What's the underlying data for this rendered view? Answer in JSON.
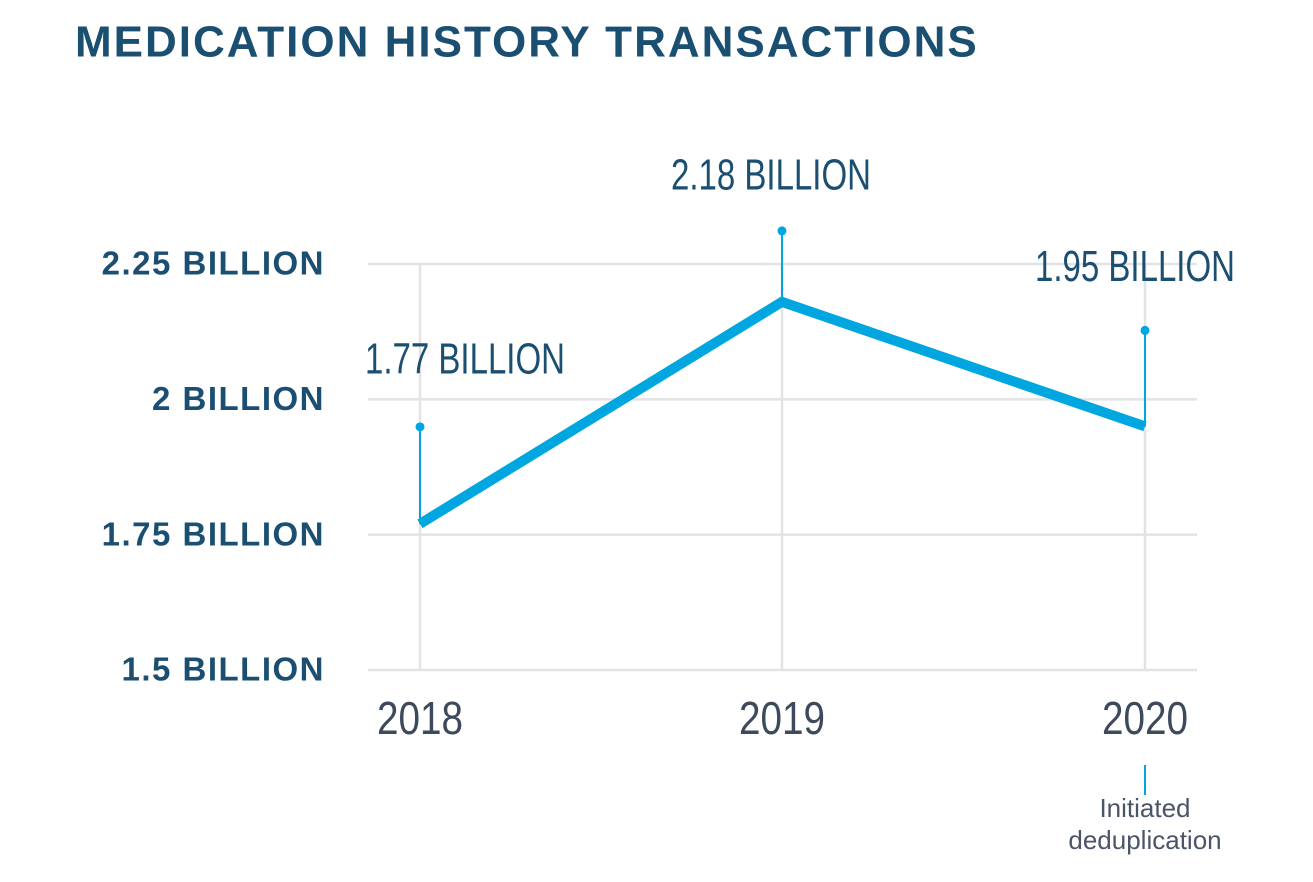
{
  "chart_data": {
    "type": "line",
    "title": "MEDICATION HISTORY TRANSACTIONS",
    "categories": [
      "2018",
      "2019",
      "2020"
    ],
    "values": [
      1.77,
      2.18,
      1.95
    ],
    "value_labels": [
      "1.77 BILLION",
      "2.18 BILLION",
      "1.95 BILLION"
    ],
    "color": "#00a6e0",
    "ylim": [
      1.5,
      2.25
    ],
    "yticks": [
      {
        "value": 1.5,
        "label": "1.5 BILLION"
      },
      {
        "value": 1.75,
        "label": "1.75 BILLION"
      },
      {
        "value": 2,
        "label": "2 BILLION"
      },
      {
        "value": 2.25,
        "label": "2.25 BILLION"
      }
    ],
    "grid": true,
    "annotation": [
      "Initiated",
      "deduplication"
    ]
  }
}
